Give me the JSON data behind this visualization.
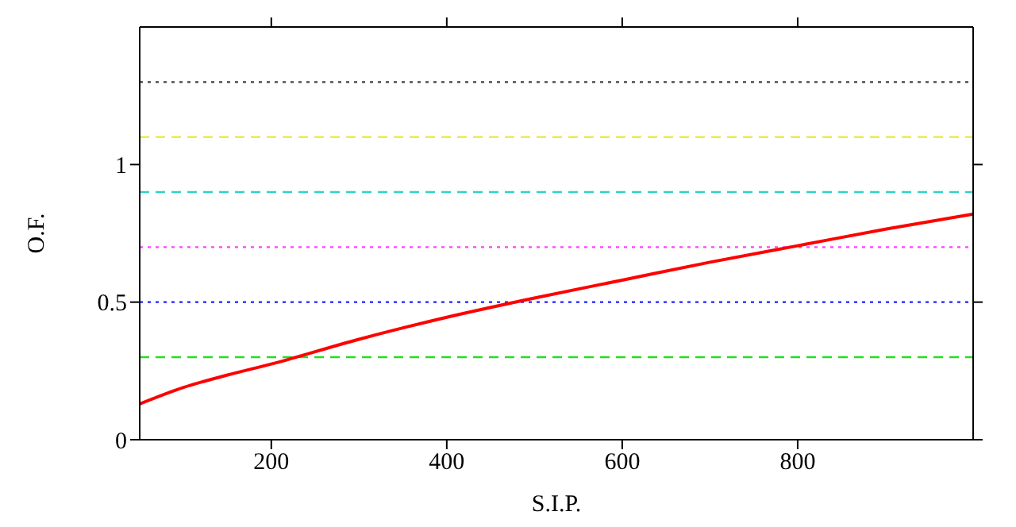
{
  "chart_data": {
    "type": "line",
    "xlabel": "S.I.P.",
    "ylabel": "O.F.",
    "x": [
      50,
      100,
      150,
      200,
      300,
      400,
      500,
      600,
      700,
      800,
      900,
      1000
    ],
    "series": [
      {
        "color": "#ff0000",
        "values": [
          0.13,
          0.19,
          0.235,
          0.275,
          0.365,
          0.445,
          0.515,
          0.58,
          0.645,
          0.705,
          0.765,
          0.82
        ]
      }
    ],
    "xlim": [
      50,
      1000
    ],
    "xticks": [
      200,
      400,
      600,
      800
    ],
    "ylim": [
      0,
      1.5
    ],
    "yticks": [
      0,
      0.5,
      1
    ],
    "ref_lines": [
      {
        "axis": "y",
        "value": 1.3,
        "color": "#404040",
        "line_style": "dotted"
      },
      {
        "axis": "y",
        "value": 1.1,
        "color": "#e8e840",
        "line_style": "dashed"
      },
      {
        "axis": "y",
        "value": 0.9,
        "color": "#30d0d0",
        "line_style": "dashed"
      },
      {
        "axis": "y",
        "value": 0.7,
        "color": "#ff40ff",
        "line_style": "dotted"
      },
      {
        "axis": "y",
        "value": 0.5,
        "color": "#2020ff",
        "line_style": "dotted"
      },
      {
        "axis": "y",
        "value": 0.3,
        "color": "#20e020",
        "line_style": "dashed"
      }
    ],
    "grid": false,
    "legend": false,
    "marker": "none",
    "line_style": "solid"
  }
}
